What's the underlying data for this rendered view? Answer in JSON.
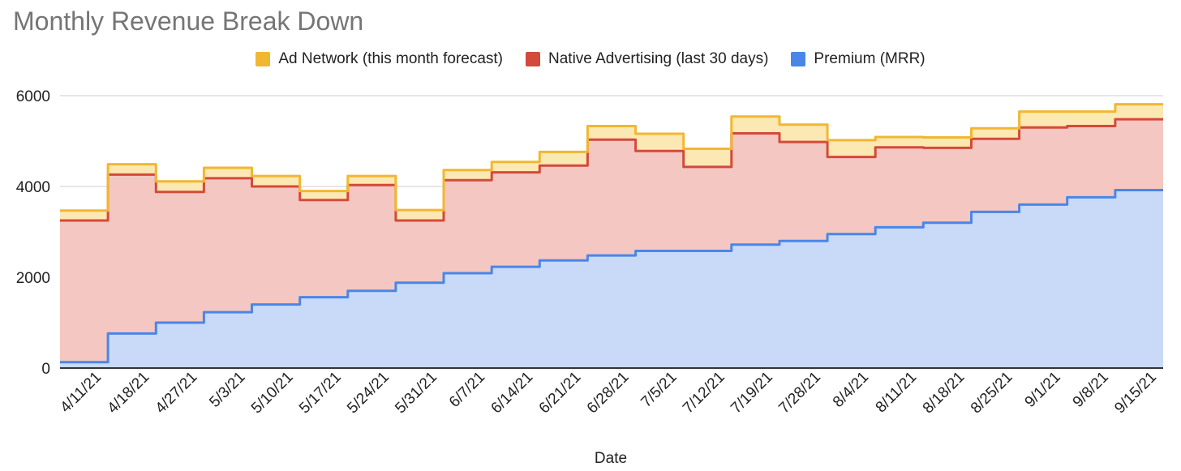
{
  "chart_data": {
    "type": "area",
    "stacked": true,
    "stepped": true,
    "title": "Monthly Revenue Break Down",
    "xlabel": "Date",
    "ylabel": "",
    "ylim": [
      0,
      6000
    ],
    "yticks": [
      0,
      2000,
      4000,
      6000
    ],
    "grid": true,
    "legend_position": "top-center",
    "x": [
      "4/11/21",
      "4/18/21",
      "4/27/21",
      "5/3/21",
      "5/10/21",
      "5/17/21",
      "5/24/21",
      "5/31/21",
      "6/7/21",
      "6/14/21",
      "6/21/21",
      "6/28/21",
      "7/5/21",
      "7/12/21",
      "7/19/21",
      "7/28/21",
      "8/4/21",
      "8/11/21",
      "8/18/21",
      "8/25/21",
      "9/1/21",
      "9/8/21",
      "9/15/21"
    ],
    "series": [
      {
        "name": "Premium (MRR)",
        "color": "#4a86e8",
        "values": [
          130,
          760,
          1000,
          1230,
          1400,
          1560,
          1700,
          1880,
          2090,
          2230,
          2370,
          2480,
          2580,
          2580,
          2720,
          2800,
          2950,
          3100,
          3200,
          3440,
          3600,
          3760,
          3920
        ]
      },
      {
        "name": "Native Advertising (last 30 days)",
        "color": "#d44a3a",
        "values": [
          3120,
          3500,
          2880,
          2950,
          2600,
          2140,
          2330,
          1370,
          2050,
          2080,
          2090,
          2550,
          2200,
          1850,
          2450,
          2180,
          1700,
          1760,
          1650,
          1610,
          1700,
          1570,
          1560
        ]
      },
      {
        "name": "Ad Network (this month forecast)",
        "color": "#f1b731",
        "values": [
          220,
          230,
          230,
          230,
          230,
          200,
          200,
          230,
          220,
          230,
          300,
          300,
          380,
          400,
          370,
          380,
          370,
          230,
          230,
          230,
          350,
          320,
          330
        ]
      }
    ],
    "end_values": {
      "Premium (MRR)": 3920,
      "Native Advertising (last 30 days)": 1560,
      "Ad Network (this month forecast)": 330
    }
  }
}
